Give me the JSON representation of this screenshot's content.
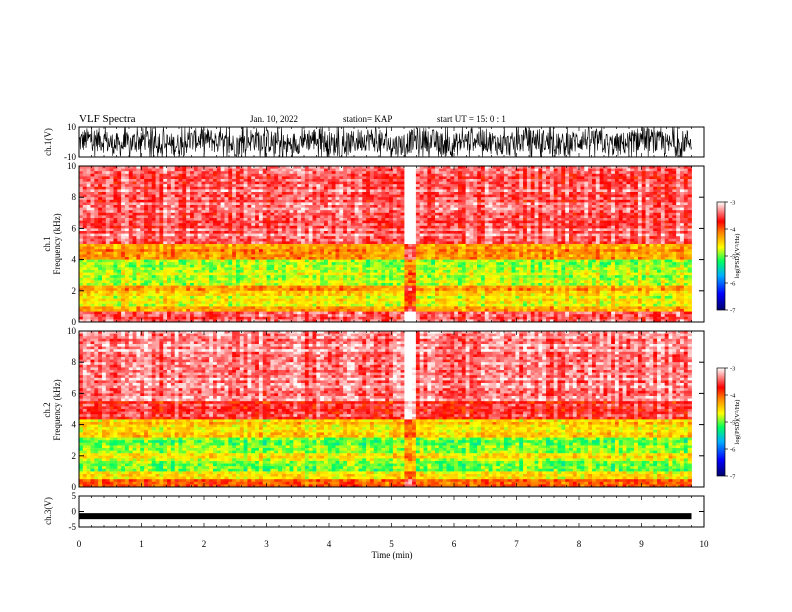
{
  "header": {
    "title": "VLF Spectra",
    "date": "Jan. 10, 2022",
    "station": "station= KAP",
    "start": "start  UT =   15: 0  : 1"
  },
  "chart_data": [
    {
      "type": "line",
      "panel": "ch1-waveform",
      "ylabel": "ch.1(V)",
      "ylim": [
        -10,
        10
      ],
      "y_ticks": [
        "10",
        "-10"
      ],
      "xlim": [
        0,
        9.8
      ],
      "description_values": {
        "approx_mean_v": 0,
        "approx_range_v": [
          -10,
          10
        ]
      }
    },
    {
      "type": "heatmap",
      "panel": "ch1-spectrogram",
      "ylabel": "ch.1",
      "ylabel2": "Frequency (kHz)",
      "ylim": [
        0,
        10
      ],
      "y_ticks": [
        "0",
        "2",
        "4",
        "6",
        "8",
        "10"
      ],
      "xlim": [
        0,
        9.8
      ],
      "bands_khz_log_psd": [
        {
          "from": 0,
          "to": 0.3,
          "level": -3.5
        },
        {
          "from": 0.3,
          "to": 0.7,
          "level": -3.3
        },
        {
          "from": 0.7,
          "to": 1.0,
          "level": -4.3
        },
        {
          "from": 1.0,
          "to": 2.0,
          "level": -4.6
        },
        {
          "from": 2.0,
          "to": 2.3,
          "level": -4.2
        },
        {
          "from": 2.3,
          "to": 4.0,
          "level": -4.8
        },
        {
          "from": 4.0,
          "to": 5.0,
          "level": -4.2
        },
        {
          "from": 5.0,
          "to": 10.0,
          "level": -3.4
        }
      ],
      "colorbar": {
        "label": "log(PSD)(V²/Hz)",
        "ticks": [
          "-3",
          "-4",
          "-5",
          "-6",
          "-7"
        ],
        "range": [
          -7,
          -3
        ]
      }
    },
    {
      "type": "heatmap",
      "panel": "ch2-spectrogram",
      "ylabel": "ch.2",
      "ylabel2": "Frequency (kHz)",
      "ylim": [
        0,
        10
      ],
      "y_ticks": [
        "0",
        "2",
        "4",
        "6",
        "8",
        "10"
      ],
      "xlim": [
        0,
        9.8
      ],
      "bands_khz_log_psd": [
        {
          "from": 0,
          "to": 0.5,
          "level": -4.0
        },
        {
          "from": 0.5,
          "to": 1.0,
          "level": -4.6
        },
        {
          "from": 1.0,
          "to": 1.8,
          "level": -4.9
        },
        {
          "from": 1.8,
          "to": 2.2,
          "level": -4.5
        },
        {
          "from": 2.2,
          "to": 3.2,
          "level": -5.0
        },
        {
          "from": 3.2,
          "to": 4.4,
          "level": -4.5
        },
        {
          "from": 4.4,
          "to": 5.5,
          "level": -3.6
        },
        {
          "from": 5.5,
          "to": 10.0,
          "level": -3.3
        }
      ],
      "colorbar": {
        "label": "log(PSD)(V²/Hz)",
        "ticks": [
          "-3",
          "-4",
          "-5",
          "-6",
          "-7"
        ],
        "range": [
          -7,
          -3
        ]
      }
    },
    {
      "type": "line",
      "panel": "ch3-waveform",
      "ylabel": "ch.3(V)",
      "ylim": [
        -5,
        5
      ],
      "y_ticks": [
        "5",
        "0",
        "-5"
      ],
      "xlim": [
        0,
        9.8
      ],
      "description_values": {
        "approx_level_v": -1.5
      }
    }
  ],
  "x_axis": {
    "label": "Time (min)",
    "ticks": [
      "0",
      "1",
      "2",
      "3",
      "4",
      "5",
      "6",
      "7",
      "8",
      "9",
      "10"
    ],
    "xlim": [
      0,
      10
    ]
  },
  "colors": {
    "colormap": [
      "#00008b",
      "#0000ff",
      "#00a0ff",
      "#00ff80",
      "#ffff00",
      "#ff8000",
      "#ff0000",
      "#ffffff"
    ]
  }
}
